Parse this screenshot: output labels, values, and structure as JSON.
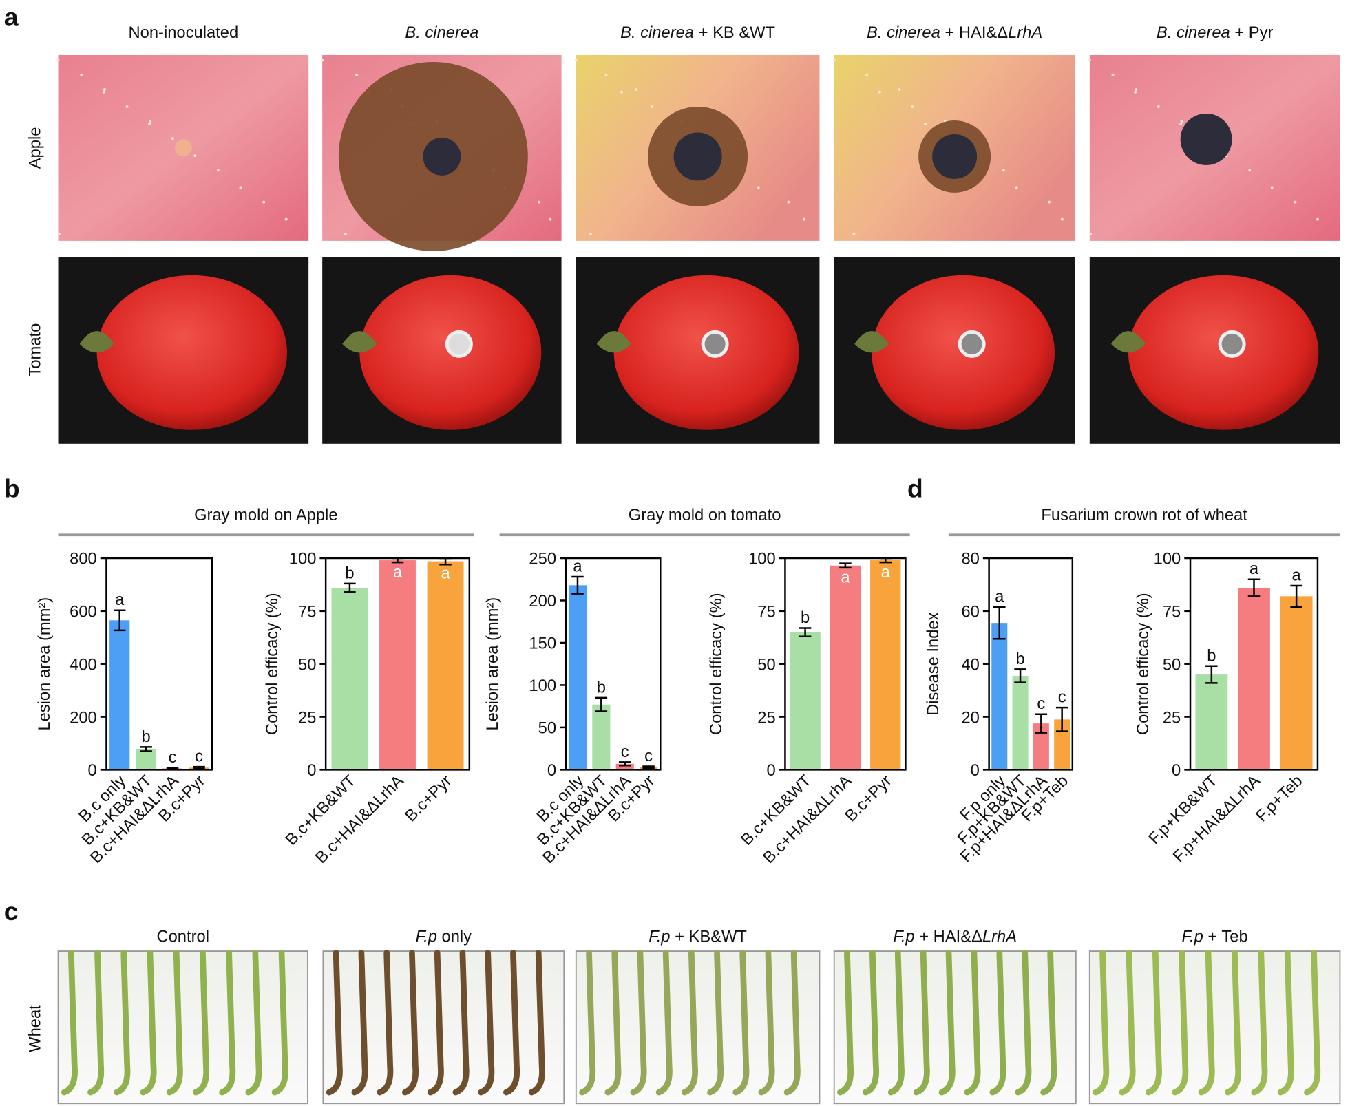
{
  "panels": [
    "a",
    "b",
    "c",
    "d"
  ],
  "photo_rows": {
    "apple": "Apple",
    "tomato": "Tomato",
    "wheat": "Wheat"
  },
  "photo_headers": [
    {
      "parts": [
        {
          "text": "Non-inoculated"
        }
      ]
    },
    {
      "parts": [
        {
          "text": "B. cinerea",
          "italic": true
        }
      ]
    },
    {
      "parts": [
        {
          "text": "B. cinerea",
          "italic": true
        },
        {
          "text": " + KB &WT"
        }
      ]
    },
    {
      "parts": [
        {
          "text": "B. cinerea",
          "italic": true
        },
        {
          "text": " + HAI&Δ"
        },
        {
          "text": "LrhA",
          "italic": true
        }
      ]
    },
    {
      "parts": [
        {
          "text": "B. cinerea",
          "italic": true
        },
        {
          "text": " + Pyr"
        }
      ]
    }
  ],
  "wheat_headers": [
    {
      "parts": [
        {
          "text": "Control"
        }
      ]
    },
    {
      "parts": [
        {
          "text": "F.p",
          "italic": true
        },
        {
          "text": " only"
        }
      ]
    },
    {
      "parts": [
        {
          "text": "F.p",
          "italic": true
        },
        {
          "text": " + KB&WT"
        }
      ]
    },
    {
      "parts": [
        {
          "text": "F.p",
          "italic": true
        },
        {
          "text": " + HAI&Δ"
        },
        {
          "text": "LrhA",
          "italic": true
        }
      ]
    },
    {
      "parts": [
        {
          "text": "F.p",
          "italic": true
        },
        {
          "text": " + Teb"
        }
      ]
    }
  ],
  "groups": [
    {
      "title": "Gray mold on Apple"
    },
    {
      "title": "Gray mold on tomato"
    },
    {
      "title": "Fusarium crown rot of wheat"
    }
  ],
  "chart_data": [
    {
      "type": "bar",
      "ylabel": "Lesion area (mm²)",
      "categories": [
        "B.c only",
        "B.c+KB&WT",
        "B.c+HAI&ΔLrhA",
        "B.c+Pyr"
      ],
      "values": [
        565,
        78,
        5,
        8
      ],
      "errors": [
        38,
        8,
        3,
        3
      ],
      "significance": [
        "a",
        "b",
        "c",
        "c"
      ],
      "colors": [
        "#4d9ff5",
        "#a8dfa5",
        "#f57d7f",
        "#f8a33c"
      ],
      "ylim": [
        0,
        800
      ],
      "yticks": [
        0,
        200,
        400,
        600,
        800
      ]
    },
    {
      "type": "bar",
      "ylabel": "Control efficacy (%)",
      "categories": [
        "B.c+KB&WT",
        "B.c+HAI&ΔLrhA",
        "B.c+Pyr"
      ],
      "values": [
        86,
        99,
        98.5
      ],
      "errors": [
        2,
        1,
        1.5
      ],
      "significance": [
        "b",
        "a",
        "a"
      ],
      "colors": [
        "#a8dfa5",
        "#f57d7f",
        "#f8a33c"
      ],
      "ylim": [
        0,
        100
      ],
      "yticks": [
        0,
        25,
        50,
        75,
        100
      ]
    },
    {
      "type": "bar",
      "ylabel": "Lesion area (mm²)",
      "categories": [
        "B.c only",
        "B.c+KB&WT",
        "B.c+HAI&ΔLrhA",
        "B.c+Pyr"
      ],
      "values": [
        218,
        77,
        7,
        3
      ],
      "errors": [
        10,
        8,
        2,
        1
      ],
      "significance": [
        "a",
        "b",
        "c",
        "c"
      ],
      "colors": [
        "#4d9ff5",
        "#a8dfa5",
        "#f57d7f",
        "#f8a33c"
      ],
      "ylim": [
        0,
        250
      ],
      "yticks": [
        0,
        50,
        100,
        150,
        200,
        250
      ]
    },
    {
      "type": "bar",
      "ylabel": "Control efficacy (%)",
      "categories": [
        "B.c+KB&WT",
        "B.c+HAI&ΔLrhA",
        "B.c+Pyr"
      ],
      "values": [
        65,
        96.5,
        99
      ],
      "errors": [
        2,
        1,
        1
      ],
      "significance": [
        "b",
        "a",
        "a"
      ],
      "colors": [
        "#a8dfa5",
        "#f57d7f",
        "#f8a33c"
      ],
      "ylim": [
        0,
        100
      ],
      "yticks": [
        0,
        25,
        50,
        75,
        100
      ]
    },
    {
      "type": "bar",
      "ylabel": "Disease Index",
      "categories": [
        "F.p only",
        "F.p+KB&WT",
        "F.p+HAI&ΔLrhA",
        "F.p+Teb"
      ],
      "values": [
        55.5,
        35.5,
        17.5,
        19
      ],
      "errors": [
        6,
        2.5,
        3.5,
        4.5
      ],
      "significance": [
        "a",
        "b",
        "c",
        "c"
      ],
      "colors": [
        "#4d9ff5",
        "#a8dfa5",
        "#f57d7f",
        "#f8a33c"
      ],
      "ylim": [
        0,
        80
      ],
      "yticks": [
        0,
        20,
        40,
        60,
        80
      ]
    },
    {
      "type": "bar",
      "ylabel": "Control efficacy (%)",
      "categories": [
        "F.p+KB&WT",
        "F.p+HAI&ΔLrhA",
        "F.p+Teb"
      ],
      "values": [
        45,
        86,
        82
      ],
      "errors": [
        4,
        4,
        5
      ],
      "significance": [
        "b",
        "a",
        "a"
      ],
      "colors": [
        "#a8dfa5",
        "#f57d7f",
        "#f8a33c"
      ],
      "ylim": [
        0,
        100
      ],
      "yticks": [
        0,
        25,
        50,
        75,
        100
      ]
    }
  ]
}
